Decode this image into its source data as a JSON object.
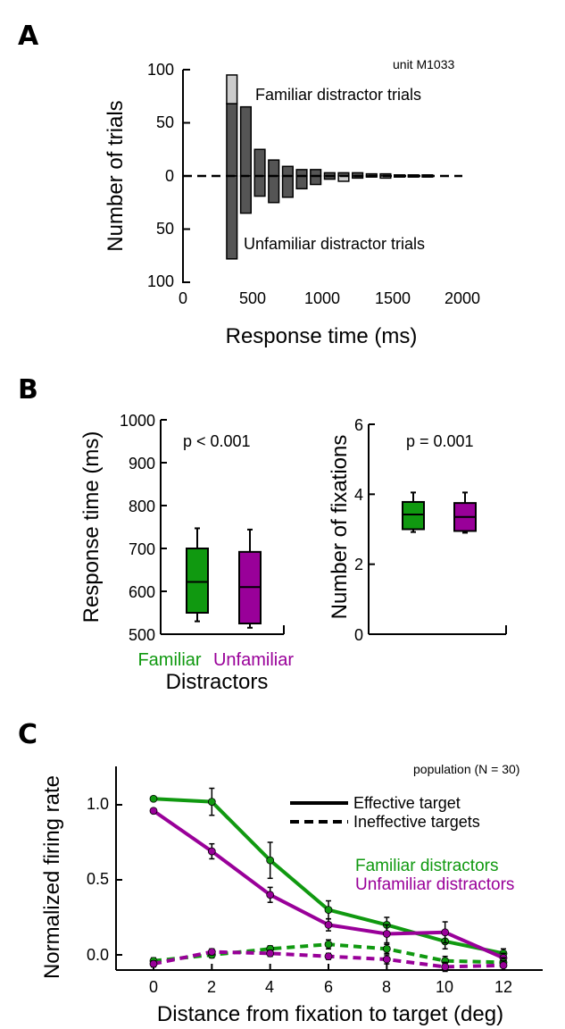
{
  "chart_data": [
    {
      "panel": "A",
      "type": "bar",
      "annotation": "unit M1033",
      "top_label": "Familiar distractor trials",
      "bottom_label": "Unfamiliar distractor trials",
      "xlabel": "Response time (ms)",
      "ylabel": "Number of trials",
      "xlim": [
        0,
        2000
      ],
      "xticks": [
        "0",
        "500",
        "1000",
        "1500",
        "2000"
      ],
      "yticks_top": [
        "100",
        "50",
        "0"
      ],
      "yticks_bottom": [
        "50",
        "100"
      ],
      "bin_width_ms": 100,
      "bins_start_ms": [
        300,
        400,
        500,
        600,
        700,
        800,
        900,
        1000,
        1100,
        1200,
        1300,
        1400,
        1500,
        1600,
        1700,
        1800,
        1900
      ],
      "familiar_counts": [
        95,
        65,
        25,
        15,
        9,
        6,
        6,
        3,
        3,
        3,
        2,
        2,
        1,
        1,
        1,
        0,
        0
      ],
      "unfamiliar_counts": [
        78,
        35,
        19,
        25,
        20,
        12,
        8,
        3,
        5,
        2,
        1,
        2,
        1,
        1,
        1,
        0,
        0
      ],
      "dark_threshold": 68,
      "colors": {
        "dark": "#555555",
        "light": "#cccccc"
      }
    },
    {
      "panel": "B-left",
      "type": "box",
      "ylabel": "Response time (ms)",
      "ylim": [
        500,
        1000
      ],
      "yticks": [
        "1000",
        "900",
        "800",
        "700",
        "600",
        "500"
      ],
      "annotation": "p < 0.001",
      "categories": [
        "Familiar",
        "Unfamiliar"
      ],
      "group_label": "Distractors",
      "boxes": [
        {
          "name": "Familiar",
          "whisker_low": 530,
          "q1": 550,
          "median": 622,
          "q3": 700,
          "whisker_high": 747,
          "color": "#109910"
        },
        {
          "name": "Unfamiliar",
          "whisker_low": 515,
          "q1": 525,
          "median": 610,
          "q3": 692,
          "whisker_high": 744,
          "color": "#990099"
        }
      ]
    },
    {
      "panel": "B-right",
      "type": "box",
      "ylabel": "Number of fixations",
      "ylim": [
        0,
        6
      ],
      "yticks": [
        "6",
        "4",
        "2",
        "0"
      ],
      "annotation": "p = 0.001",
      "boxes": [
        {
          "name": "Familiar",
          "whisker_low": 2.92,
          "q1": 3.0,
          "median": 3.42,
          "q3": 3.78,
          "whisker_high": 4.05,
          "color": "#109910"
        },
        {
          "name": "Unfamiliar",
          "whisker_low": 2.9,
          "q1": 2.95,
          "median": 3.35,
          "q3": 3.75,
          "whisker_high": 4.05,
          "color": "#990099"
        }
      ]
    },
    {
      "panel": "C",
      "type": "line",
      "annotation": "population (N = 30)",
      "xlabel": "Distance from fixation to target (deg)",
      "ylabel": "Normalized firing rate",
      "x": [
        0,
        2,
        4,
        6,
        8,
        10,
        12
      ],
      "xticks": [
        "0",
        "2",
        "4",
        "6",
        "8",
        "10",
        "12"
      ],
      "yticks": [
        "1.0",
        "0.5",
        "0.0"
      ],
      "ylim": [
        -0.1,
        1.2
      ],
      "legend_style": [
        "Effective target",
        "Ineffective targets"
      ],
      "legend_color": [
        "Familiar distractors",
        "Unfamiliar distractors"
      ],
      "series": [
        {
          "name": "Familiar distractors",
          "style": "solid",
          "color": "#109910",
          "values": [
            1.04,
            1.02,
            0.63,
            0.3,
            0.2,
            0.09,
            0.01
          ],
          "errors": [
            0.01,
            0.09,
            0.12,
            0.06,
            0.05,
            0.05,
            0.03
          ]
        },
        {
          "name": "Unfamiliar distractors",
          "style": "solid",
          "color": "#990099",
          "values": [
            0.96,
            0.69,
            0.4,
            0.2,
            0.14,
            0.15,
            -0.02
          ],
          "errors": [
            0.01,
            0.05,
            0.05,
            0.04,
            0.06,
            0.07,
            0.03
          ]
        },
        {
          "name": "Familiar distractors",
          "style": "dashed",
          "color": "#109910",
          "values": [
            -0.04,
            0.0,
            0.04,
            0.07,
            0.04,
            -0.04,
            -0.05
          ],
          "errors": [
            0.02,
            0.02,
            0.02,
            0.03,
            0.03,
            0.03,
            0.03
          ]
        },
        {
          "name": "Unfamiliar distractors",
          "style": "dashed",
          "color": "#990099",
          "values": [
            -0.06,
            0.02,
            0.01,
            -0.01,
            -0.03,
            -0.08,
            -0.07
          ],
          "errors": [
            0.02,
            0.02,
            0.02,
            0.02,
            0.03,
            0.03,
            0.03
          ]
        }
      ]
    }
  ]
}
